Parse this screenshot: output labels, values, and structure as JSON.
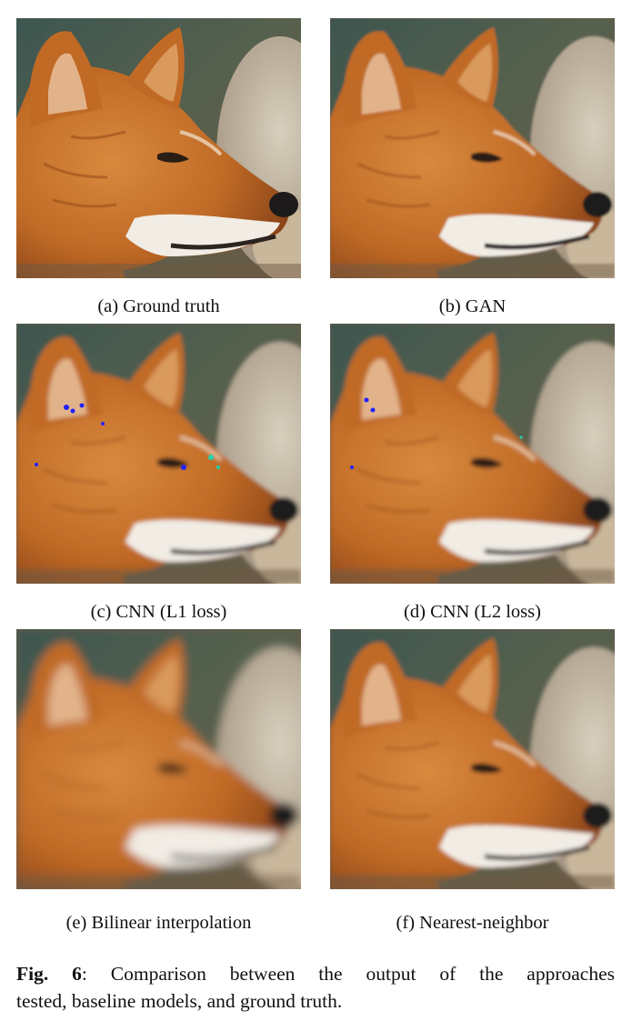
{
  "panels": [
    {
      "id": "a",
      "caption": "(a) Ground truth"
    },
    {
      "id": "b",
      "caption": "(b) GAN"
    },
    {
      "id": "c",
      "caption": "(c) CNN (L1 loss)"
    },
    {
      "id": "d",
      "caption": "(d) CNN (L2 loss)"
    },
    {
      "id": "e",
      "caption": "(e) Bilinear interpolation"
    },
    {
      "id": "f",
      "caption": "(f) Nearest-neighbor"
    }
  ],
  "figure": {
    "label": "Fig. 6",
    "text_line1": ": Comparison between the output of the approaches",
    "text_line2": "tested, baseline models, and ground truth."
  },
  "colors": {
    "fur": "#c8742e",
    "background_teal": "#3f5a55",
    "artifact_blue": "#2222ff",
    "artifact_cyan": "#22d3b0"
  }
}
